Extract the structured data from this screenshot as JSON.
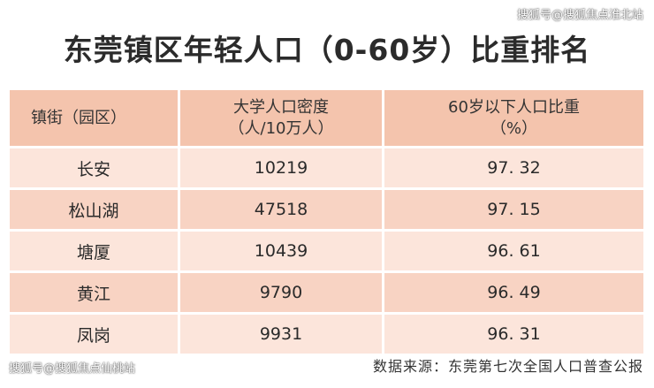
{
  "watermark_top": "搜狐号@搜狐焦点淮北站",
  "watermark_bottom": "搜狐号@搜狐焦点仙桃站",
  "title": "东莞镇区年轻人口（0-60岁）比重排名",
  "table": {
    "headers": [
      {
        "line1": "镇街（园区）",
        "line2": ""
      },
      {
        "line1": "大学人口密度",
        "line2": "（人/10万人）"
      },
      {
        "line1": "60岁以下人口比重",
        "line2": "（%）"
      }
    ],
    "rows": [
      {
        "town": "长安",
        "density": "10219",
        "ratio": "97. 32"
      },
      {
        "town": "松山湖",
        "density": "47518",
        "ratio": "97. 15"
      },
      {
        "town": "塘厦",
        "density": "10439",
        "ratio": "96. 61"
      },
      {
        "town": "黄江",
        "density": "9790",
        "ratio": "96. 49"
      },
      {
        "town": "凤岗",
        "density": "9931",
        "ratio": "96. 31"
      }
    ]
  },
  "source": "数据来源：东莞第七次全国人口普查公报"
}
